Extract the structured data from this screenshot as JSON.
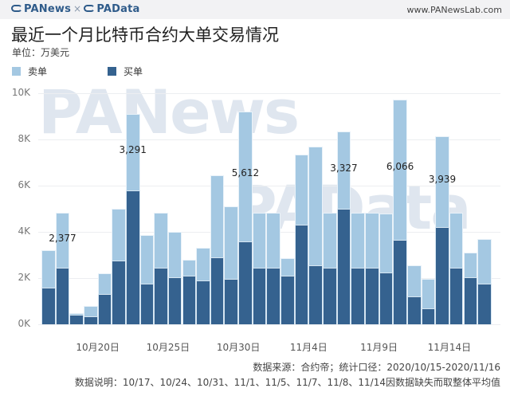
{
  "header": {
    "brand_left": "PANews",
    "brand_sep": "×",
    "brand_right": "PAData",
    "site": "www.PANewsLab.com"
  },
  "title": "最近一个月比特币合约大单交易情况",
  "unit": "单位：万美元",
  "legend": [
    {
      "label": "卖单",
      "color": "#a4c8e2"
    },
    {
      "label": "买单",
      "color": "#35628f"
    }
  ],
  "watermark": [
    "PANews",
    "PAData"
  ],
  "footer": {
    "source": "数据来源：合约帝；统计口径：2020/10/15-2020/11/16",
    "note": "数据说明：10/17、10/24、10/31、11/1、11/5、11/7、11/8、11/14因数据缺失而取整体平均值"
  },
  "chart_data": {
    "type": "bar",
    "stacked": true,
    "title": "最近一个月比特币合约大单交易情况",
    "subtitle": "单位：万美元",
    "xlabel": "",
    "ylabel": "",
    "ylim": [
      0,
      10000
    ],
    "yticks": [
      "0K",
      "2K",
      "4K",
      "6K",
      "8K",
      "10K"
    ],
    "grid": true,
    "legend_position": "top-left",
    "x_tick_labels": [
      "10月20日",
      "10月25日",
      "10月30日",
      "11月4日",
      "11月9日",
      "11月14日"
    ],
    "categories": [
      "10/16",
      "10/17",
      "10/18",
      "10/19",
      "10/20",
      "10/21",
      "10/22",
      "10/23",
      "10/24",
      "10/25",
      "10/26",
      "10/27",
      "10/28",
      "10/29",
      "10/30",
      "10/31",
      "11/1",
      "11/2",
      "11/3",
      "11/4",
      "11/5",
      "11/6",
      "11/7",
      "11/8",
      "11/9",
      "11/10",
      "11/11",
      "11/12",
      "11/13",
      "11/14",
      "11/15",
      "11/16"
    ],
    "series": [
      {
        "name": "买单",
        "color": "#35628f",
        "values": [
          1600,
          2450,
          400,
          350,
          1300,
          2750,
          5800,
          1750,
          2450,
          2050,
          2100,
          1900,
          2900,
          1950,
          3600,
          2450,
          2450,
          2100,
          4300,
          2550,
          2450,
          5000,
          2450,
          2450,
          2250,
          3650,
          1200,
          700,
          4200,
          2450,
          2050,
          1750
        ]
      },
      {
        "name": "卖单",
        "color": "#a4c8e2",
        "values": [
          1600,
          2370,
          100,
          450,
          900,
          2250,
          3290,
          2100,
          2370,
          1950,
          700,
          1400,
          3550,
          3150,
          5610,
          2370,
          2370,
          750,
          3050,
          5150,
          2370,
          3330,
          2370,
          2370,
          2550,
          6070,
          1350,
          1250,
          3940,
          2370,
          1050,
          1950
        ]
      }
    ],
    "annotations": [
      {
        "index": 1,
        "text": "2,377"
      },
      {
        "index": 6,
        "text": "3,291"
      },
      {
        "index": 14,
        "text": "5,612"
      },
      {
        "index": 21,
        "text": "3,327"
      },
      {
        "index": 25,
        "text": "6,066"
      },
      {
        "index": 28,
        "text": "3,939"
      }
    ]
  }
}
